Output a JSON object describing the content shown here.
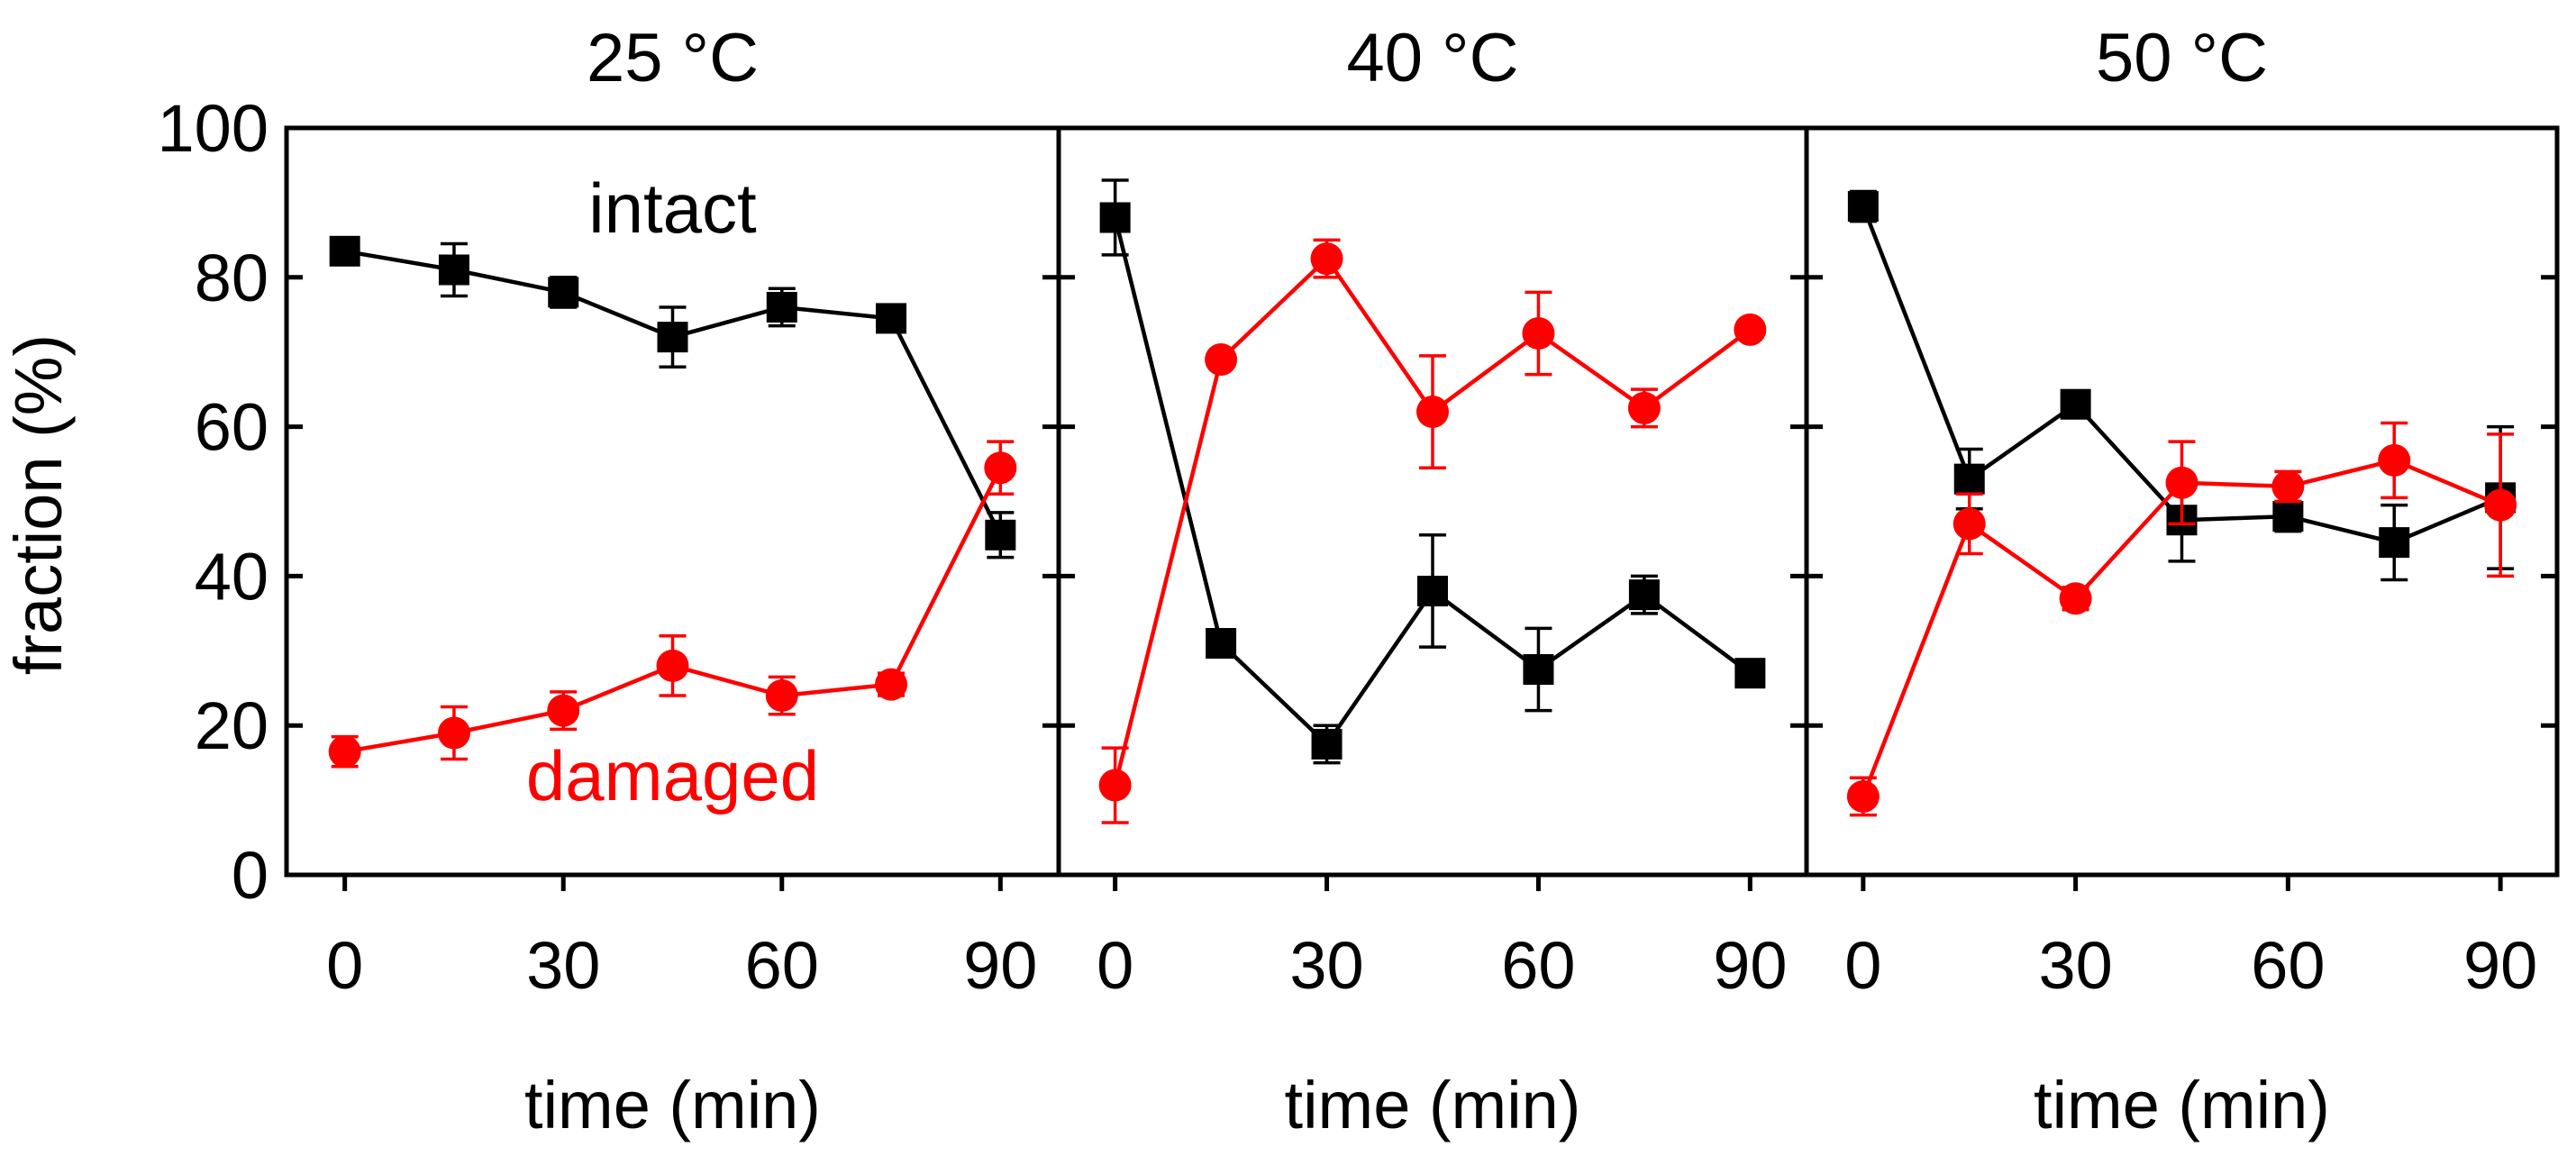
{
  "chart_data": {
    "type": "line",
    "ylabel": "fraction (%)",
    "ylim": [
      0,
      100
    ],
    "yticks": [
      0,
      20,
      40,
      60,
      80,
      100
    ],
    "ytick_labels": [
      "0",
      "20",
      "40",
      "60",
      "80",
      "100"
    ],
    "colors": {
      "intact": "#000000",
      "damaged": "#ff0000"
    },
    "panels": [
      {
        "title": "25 °C",
        "xlabel": "time (min)",
        "xlim": [
          -8,
          98
        ],
        "xticks": [
          0,
          30,
          60,
          90
        ],
        "xtick_labels": [
          "0",
          "30",
          "60",
          "90"
        ],
        "annotations": [
          {
            "text": "intact",
            "series": "intact",
            "x": 45,
            "y": 86
          },
          {
            "text": "damaged",
            "series": "damaged",
            "x": 45,
            "y": 10
          }
        ],
        "series": [
          {
            "key": "intact",
            "marker": "square",
            "x": [
              0,
              15,
              30,
              45,
              60,
              75,
              90
            ],
            "y": [
              83.5,
              81.0,
              78.0,
              72.0,
              76.0,
              74.5,
              45.5
            ],
            "err": [
              1.5,
              3.5,
              2.0,
              4.0,
              2.5,
              1.5,
              3.0
            ]
          },
          {
            "key": "damaged",
            "marker": "circle",
            "x": [
              0,
              15,
              30,
              45,
              60,
              75,
              90
            ],
            "y": [
              16.5,
              19.0,
              22.0,
              28.0,
              24.0,
              25.5,
              54.5
            ],
            "err": [
              2.0,
              3.5,
              2.5,
              4.0,
              2.5,
              1.5,
              3.5
            ]
          }
        ]
      },
      {
        "title": "40 °C",
        "xlabel": "time (min)",
        "xlim": [
          -8,
          98
        ],
        "xticks": [
          0,
          30,
          60,
          90
        ],
        "xtick_labels": [
          "0",
          "30",
          "60",
          "90"
        ],
        "annotations": [],
        "series": [
          {
            "key": "intact",
            "marker": "square",
            "x": [
              0,
              15,
              30,
              45,
              60,
              75,
              90
            ],
            "y": [
              88.0,
              31.0,
              17.5,
              38.0,
              27.5,
              37.5,
              27.0
            ],
            "err": [
              5.0,
              1.5,
              2.5,
              7.5,
              5.5,
              2.5,
              1.5
            ]
          },
          {
            "key": "damaged",
            "marker": "circle",
            "x": [
              0,
              15,
              30,
              45,
              60,
              75,
              90
            ],
            "y": [
              12.0,
              69.0,
              82.5,
              62.0,
              72.5,
              62.5,
              73.0
            ],
            "err": [
              5.0,
              1.0,
              2.5,
              7.5,
              5.5,
              2.5,
              1.0
            ]
          }
        ]
      },
      {
        "title": "50 °C",
        "xlabel": "time (min)",
        "xlim": [
          -8,
          98
        ],
        "xticks": [
          0,
          30,
          60,
          90
        ],
        "xtick_labels": [
          "0",
          "30",
          "60",
          "90"
        ],
        "annotations": [],
        "series": [
          {
            "key": "intact",
            "marker": "square",
            "x": [
              0,
              15,
              30,
              45,
              60,
              75,
              90
            ],
            "y": [
              89.5,
              53.0,
              63.0,
              47.5,
              48.0,
              44.5,
              50.5
            ],
            "err": [
              2.0,
              4.0,
              1.5,
              5.5,
              2.0,
              5.0,
              9.5
            ]
          },
          {
            "key": "damaged",
            "marker": "circle",
            "x": [
              0,
              15,
              30,
              45,
              60,
              75,
              90
            ],
            "y": [
              10.5,
              47.0,
              37.0,
              52.5,
              52.0,
              55.5,
              49.5
            ],
            "err": [
              2.5,
              4.0,
              1.5,
              5.5,
              2.0,
              5.0,
              9.5
            ]
          }
        ]
      }
    ]
  }
}
